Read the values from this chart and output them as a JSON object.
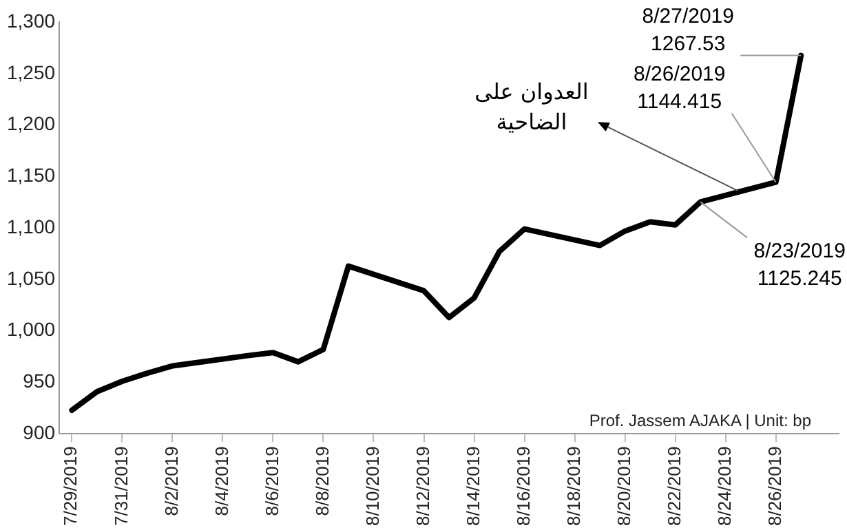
{
  "chart_data": {
    "type": "line",
    "x": [
      "2019-07-29",
      "2019-07-30",
      "2019-07-31",
      "2019-08-01",
      "2019-08-02",
      "2019-08-05",
      "2019-08-06",
      "2019-08-07",
      "2019-08-08",
      "2019-08-09",
      "2019-08-12",
      "2019-08-13",
      "2019-08-14",
      "2019-08-15",
      "2019-08-16",
      "2019-08-19",
      "2019-08-20",
      "2019-08-21",
      "2019-08-22",
      "2019-08-23",
      "2019-08-26",
      "2019-08-27"
    ],
    "series": [
      {
        "color": "#000000",
        "values": [
          923,
          941,
          951,
          959,
          966,
          976,
          979,
          970,
          982,
          1063,
          1039,
          1013,
          1032,
          1077,
          1099,
          1083,
          1097,
          1106,
          1103,
          1125.245,
          1144.415,
          1267.53
        ]
      }
    ],
    "xlim": [
      "2019-07-28T12:00",
      "2019-08-28T12:00"
    ],
    "xticks": [
      {
        "value": "2019-07-29",
        "label": "7/29/2019"
      },
      {
        "value": "2019-07-31",
        "label": "7/31/2019"
      },
      {
        "value": "2019-08-02",
        "label": "8/2/2019"
      },
      {
        "value": "2019-08-04",
        "label": "8/4/2019"
      },
      {
        "value": "2019-08-06",
        "label": "8/6/2019"
      },
      {
        "value": "2019-08-08",
        "label": "8/8/2019"
      },
      {
        "value": "2019-08-10",
        "label": "8/10/2019"
      },
      {
        "value": "2019-08-12",
        "label": "8/12/2019"
      },
      {
        "value": "2019-08-14",
        "label": "8/14/2019"
      },
      {
        "value": "2019-08-16",
        "label": "8/16/2019"
      },
      {
        "value": "2019-08-18",
        "label": "8/18/2019"
      },
      {
        "value": "2019-08-20",
        "label": "8/20/2019"
      },
      {
        "value": "2019-08-22",
        "label": "8/22/2019"
      },
      {
        "value": "2019-08-24",
        "label": "8/24/2019"
      },
      {
        "value": "2019-08-26",
        "label": "8/26/2019"
      }
    ],
    "ylim": [
      900,
      1300
    ],
    "yticks": [
      {
        "value": 900,
        "label": "900"
      },
      {
        "value": 950,
        "label": "950"
      },
      {
        "value": 1000,
        "label": "1,000"
      },
      {
        "value": 1050,
        "label": "1,050"
      },
      {
        "value": 1100,
        "label": "1,100"
      },
      {
        "value": 1150,
        "label": "1,150"
      },
      {
        "value": 1200,
        "label": "1,200"
      },
      {
        "value": 1250,
        "label": "1,250"
      },
      {
        "value": 1300,
        "label": "1,300"
      }
    ],
    "grid": false,
    "legend": false,
    "marker": "none",
    "line_style": "solid",
    "annotations": [
      {
        "text": "8/23/2019\n1125.245",
        "x": "2019-08-23",
        "y": 1125.245
      },
      {
        "text": "8/26/2019\n1144.415",
        "x": "2019-08-26",
        "y": 1144.415
      },
      {
        "text": "8/27/2019\n1267.53",
        "x": "2019-08-27",
        "y": 1267.53
      },
      {
        "text": "العدوان على\nالضاحية",
        "x": "2019-08-24T12:00",
        "y": 1136
      },
      "Prof. Jassem AJAKA | Unit: bp"
    ]
  }
}
